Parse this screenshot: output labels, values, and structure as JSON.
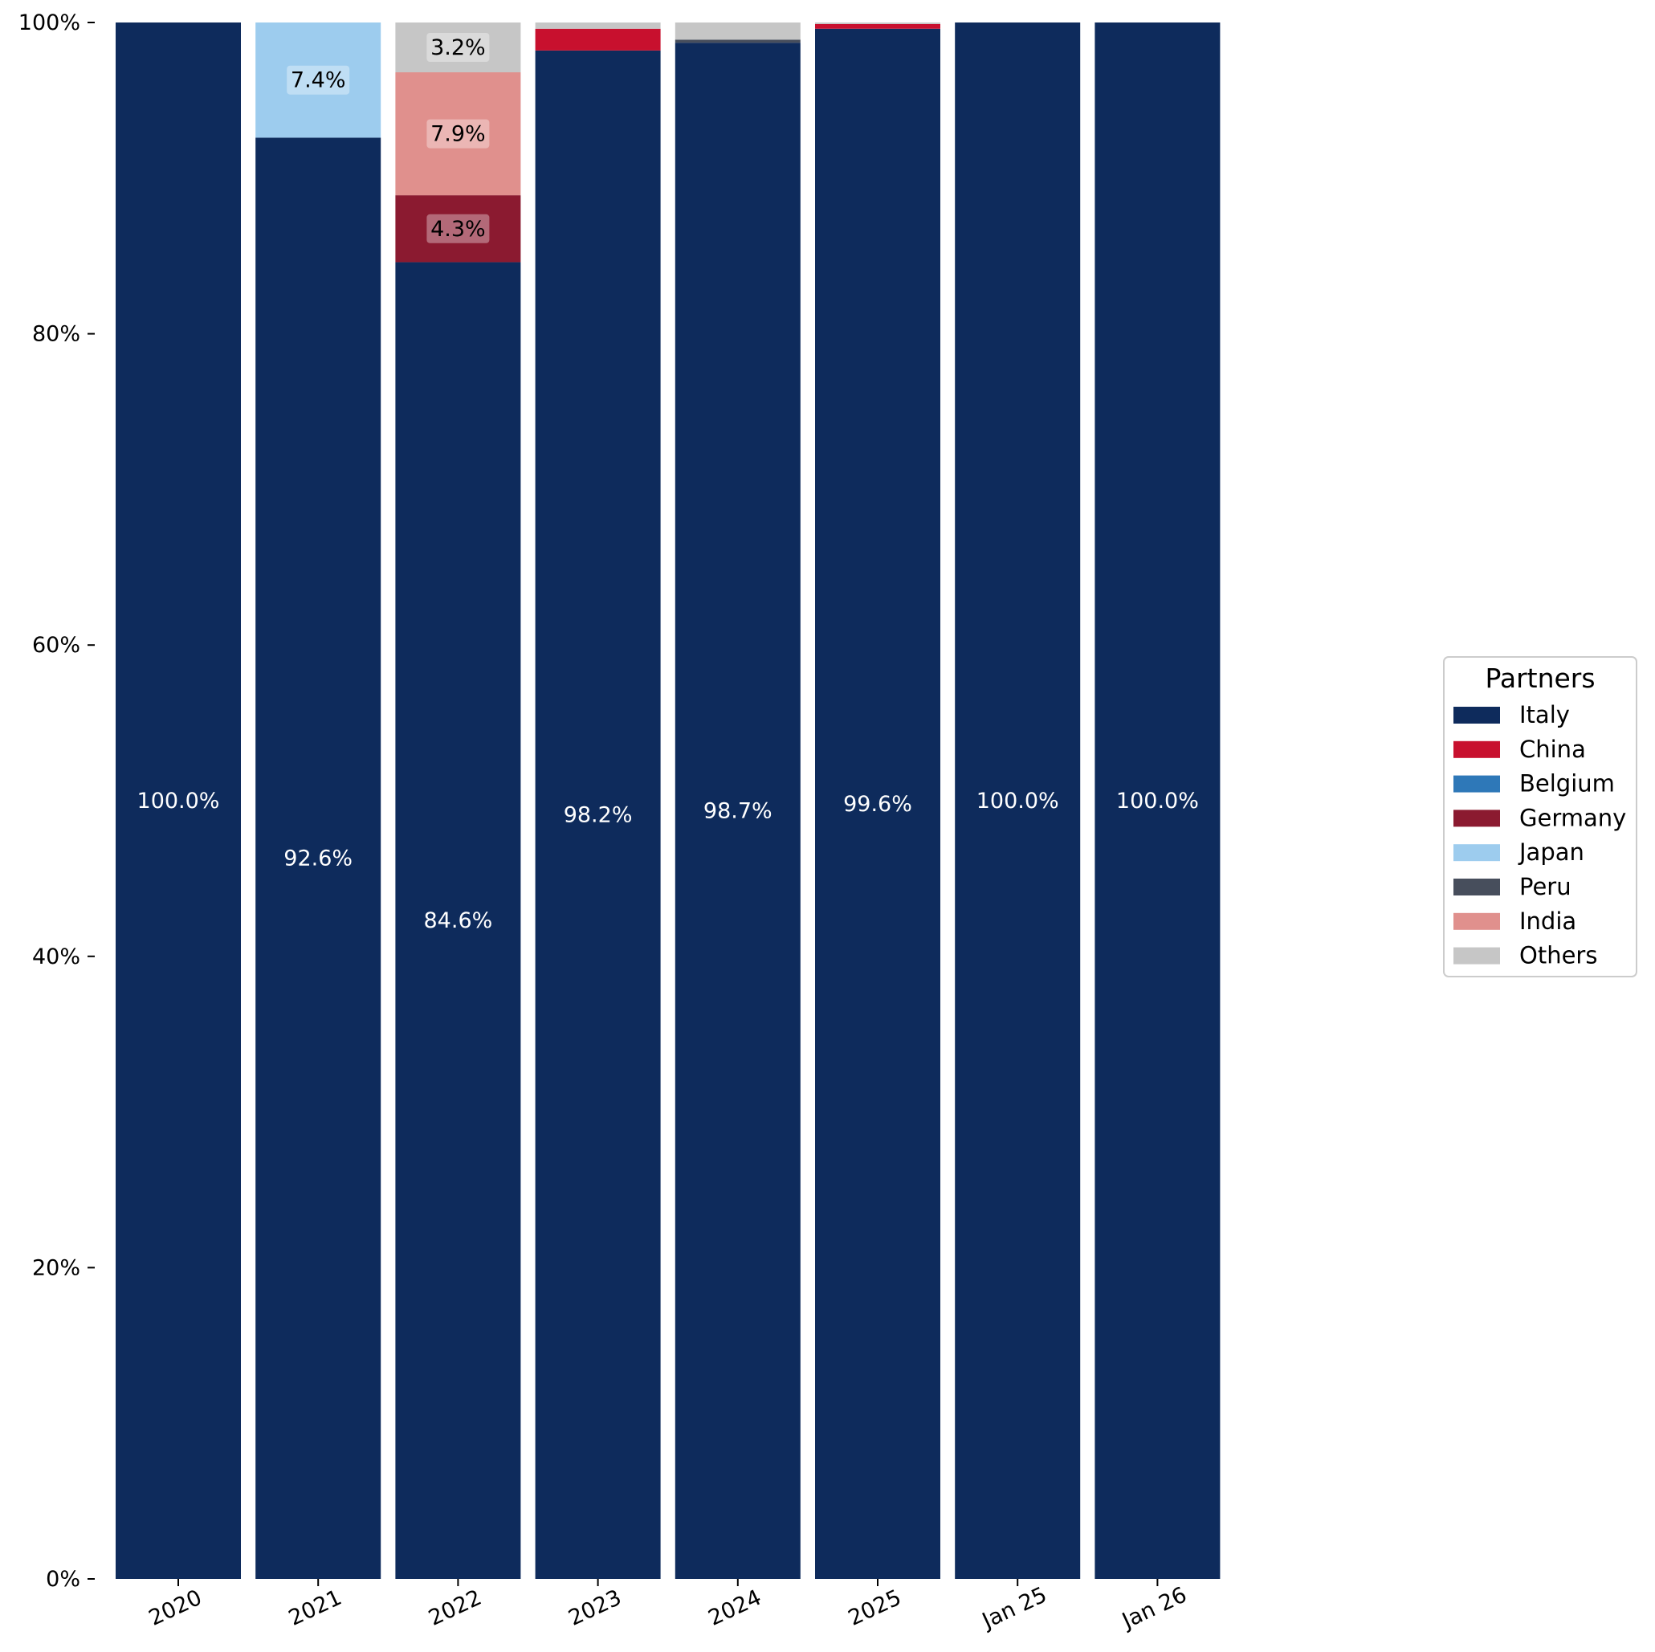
{
  "chart_data": {
    "type": "bar",
    "stacked": true,
    "categories": [
      "2020",
      "2021",
      "2022",
      "2023",
      "2024",
      "2025",
      "Jan 25",
      "Jan 26"
    ],
    "ylim": [
      0,
      100
    ],
    "yticks": [
      "0%",
      "20%",
      "40%",
      "60%",
      "80%",
      "100%"
    ],
    "ytick_values": [
      0,
      20,
      40,
      60,
      80,
      100
    ],
    "grid": false,
    "legend": {
      "title": "Partners",
      "placement": "right"
    },
    "series": [
      {
        "name": "Italy",
        "color": "#0e2b5c",
        "values": [
          100.0,
          92.6,
          84.6,
          98.2,
          98.7,
          99.6,
          100.0,
          100.0
        ]
      },
      {
        "name": "China",
        "color": "#c8102e",
        "values": [
          0,
          0,
          0,
          1.4,
          0,
          0.3,
          0,
          0
        ]
      },
      {
        "name": "Belgium",
        "color": "#2e78b8",
        "values": [
          0,
          0,
          0,
          0,
          0,
          0,
          0,
          0
        ]
      },
      {
        "name": "Germany",
        "color": "#8b1a30",
        "values": [
          0,
          0,
          4.3,
          0,
          0,
          0,
          0,
          0
        ]
      },
      {
        "name": "Japan",
        "color": "#9dccee",
        "values": [
          0,
          7.4,
          0,
          0,
          0,
          0,
          0,
          0
        ]
      },
      {
        "name": "Peru",
        "color": "#474e5c",
        "values": [
          0,
          0,
          0,
          0,
          0.2,
          0,
          0,
          0
        ]
      },
      {
        "name": "India",
        "color": "#e0908d",
        "values": [
          0,
          0,
          7.9,
          0,
          0,
          0,
          0,
          0
        ]
      },
      {
        "name": "Others",
        "color": "#c6c6c6",
        "values": [
          0,
          0,
          3.2,
          0.4,
          1.1,
          0.1,
          0,
          0
        ]
      }
    ],
    "data_labels": [
      {
        "category": "2020",
        "series": "Italy",
        "text": "100.0%"
      },
      {
        "category": "2021",
        "series": "Italy",
        "text": "92.6%"
      },
      {
        "category": "2021",
        "series": "Japan",
        "text": "7.4%"
      },
      {
        "category": "2022",
        "series": "Italy",
        "text": "84.6%"
      },
      {
        "category": "2022",
        "series": "Germany",
        "text": "4.3%"
      },
      {
        "category": "2022",
        "series": "India",
        "text": "7.9%"
      },
      {
        "category": "2022",
        "series": "Others",
        "text": "3.2%"
      },
      {
        "category": "2023",
        "series": "Italy",
        "text": "98.2%"
      },
      {
        "category": "2024",
        "series": "Italy",
        "text": "98.7%"
      },
      {
        "category": "2025",
        "series": "Italy",
        "text": "99.6%"
      },
      {
        "category": "Jan 25",
        "series": "Italy",
        "text": "100.0%"
      },
      {
        "category": "Jan 26",
        "series": "Italy",
        "text": "100.0%"
      }
    ]
  }
}
